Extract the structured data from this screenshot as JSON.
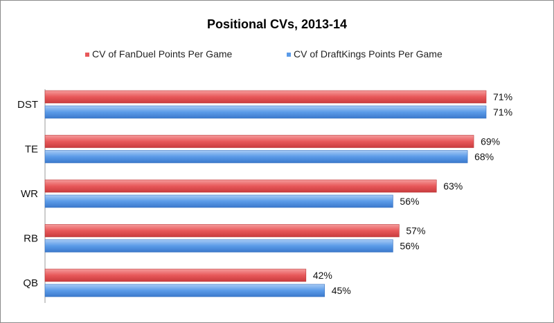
{
  "chart_data": {
    "type": "bar",
    "orientation": "horizontal",
    "title": "Positional CVs, 2013-14",
    "categories": [
      "DST",
      "TE",
      "WR",
      "RB",
      "QB"
    ],
    "series": [
      {
        "name": "CV of FanDuel Points Per Game",
        "color": "#e8585a",
        "values": [
          71,
          69,
          63,
          57,
          42
        ],
        "labels": [
          "71%",
          "69%",
          "63%",
          "57%",
          "42%"
        ]
      },
      {
        "name": "CV of DraftKings Points Per Game",
        "color": "#5b9be8",
        "values": [
          71,
          68,
          56,
          56,
          45
        ],
        "labels": [
          "71%",
          "68%",
          "56%",
          "56%",
          "45%"
        ]
      }
    ],
    "xlim": [
      0,
      100
    ],
    "legend_position": "top",
    "grid": false
  }
}
